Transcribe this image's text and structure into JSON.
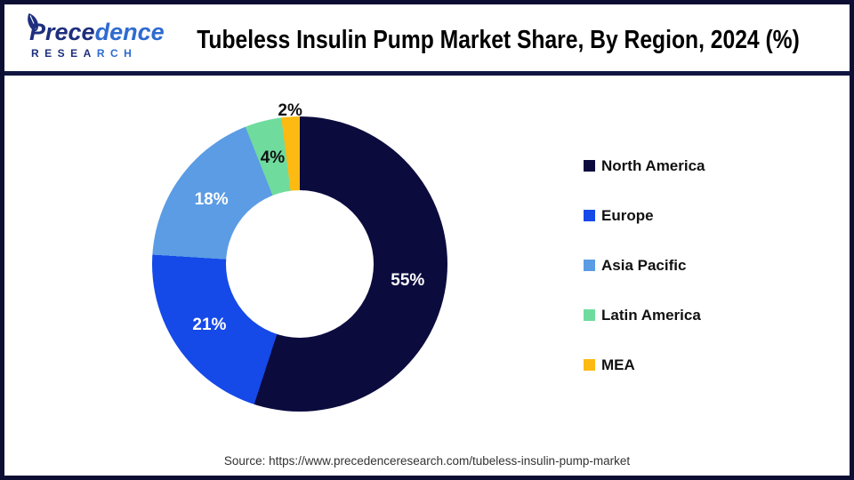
{
  "header": {
    "logo": {
      "brand_a": "Prece",
      "brand_b": "dence",
      "sub_a": "RESEA",
      "sub_b": "RCH",
      "navy": "#1e2f7e",
      "blue": "#2e6bd0"
    },
    "title": "Tubeless Insulin Pump Market Share, By Region, 2024 (%)"
  },
  "chart_data": {
    "type": "pie",
    "subtype": "donut",
    "title": "Tubeless Insulin Pump Market Share, By Region, 2024 (%)",
    "unit": "%",
    "start_angle_deg": 0,
    "direction": "clockwise",
    "inner_radius_ratio": 0.5,
    "legend_position": "right",
    "categories": [
      "North America",
      "Europe",
      "Asia Pacific",
      "Latin America",
      "MEA"
    ],
    "values": [
      55,
      21,
      18,
      4,
      2
    ],
    "slices": [
      {
        "label": "North America",
        "value": 55,
        "value_label": "55%",
        "color": "#0b0b3e"
      },
      {
        "label": "Europe",
        "value": 21,
        "value_label": "21%",
        "color": "#1549e8"
      },
      {
        "label": "Asia Pacific",
        "value": 18,
        "value_label": "18%",
        "color": "#5b9ce4"
      },
      {
        "label": "Latin America",
        "value": 4,
        "value_label": "4%",
        "color": "#6fdc9e"
      },
      {
        "label": "MEA",
        "value": 2,
        "value_label": "2%",
        "color": "#fcba12"
      }
    ]
  },
  "footer": {
    "source": "Source: https://www.precedenceresearch.com/tubeless-insulin-pump-market"
  }
}
